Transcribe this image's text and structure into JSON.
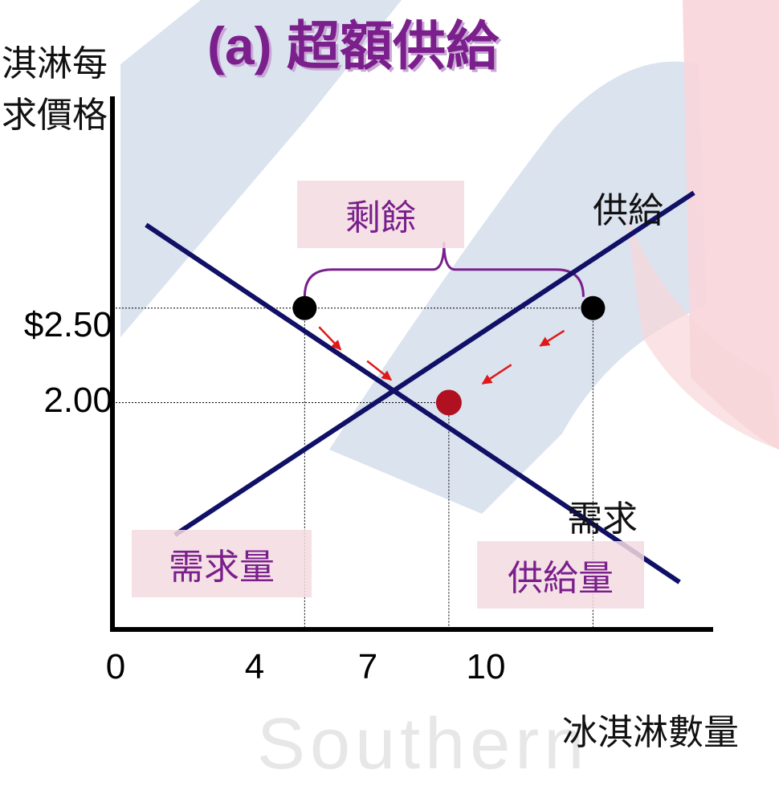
{
  "title": "(a) 超額供給",
  "watermark": "Southern",
  "surplus_label": "剩餘",
  "quantity_demanded_label": "需求量",
  "quantity_supplied_label": "供給量",
  "colors": {
    "curve": "#0f1066",
    "point": "#000000",
    "equilibrium_point": "#b01020",
    "arrow": "#e01818",
    "brace": "#7a1f8c",
    "title": "#7a1f8c",
    "bg_blue": "#dbe3ef",
    "bg_pink": "#f8d5da"
  },
  "chart_data": {
    "type": "line",
    "ylabel_lines": [
      "淇淋每",
      "求價格"
    ],
    "xlabel": "冰淇淋數量",
    "x_ticks": [
      "0",
      "4",
      "7",
      "10"
    ],
    "y_ticks": [
      "$2.50",
      "2.00"
    ],
    "series": [
      {
        "name": "供給",
        "x": [
          1.3,
          12.1
        ],
        "y": [
          1.3,
          3.11
        ]
      },
      {
        "name": "需求",
        "x": [
          0.7,
          11.8
        ],
        "y": [
          2.94,
          1.05
        ]
      }
    ],
    "points": [
      {
        "x": 4,
        "y": 2.5,
        "kind": "quantity_demanded"
      },
      {
        "x": 10,
        "y": 2.5,
        "kind": "quantity_supplied"
      },
      {
        "x": 7,
        "y": 2.0,
        "kind": "equilibrium"
      }
    ],
    "reference_lines": {
      "price": 2.5,
      "equilibrium_price": 2.0,
      "quantities": [
        4,
        7,
        10
      ]
    },
    "annotations": [
      "剩餘",
      "需求量",
      "供給量"
    ],
    "xlim": [
      0,
      12.5
    ],
    "ylim": [
      0.8,
      3.62
    ]
  }
}
